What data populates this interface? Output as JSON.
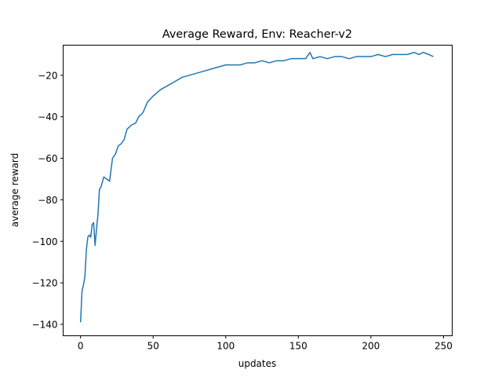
{
  "chart_data": {
    "type": "line",
    "title": "Average Reward, Env: Reacher-v2",
    "xlabel": "updates",
    "ylabel": "average reward",
    "xlim": [
      -12,
      256
    ],
    "ylim": [
      -145.5,
      -5.5
    ],
    "xticks": [
      0,
      50,
      100,
      150,
      200,
      250
    ],
    "yticks": [
      -140,
      -120,
      -100,
      -80,
      -60,
      -40,
      -20
    ],
    "xtick_labels": [
      "0",
      "50",
      "100",
      "150",
      "200",
      "250"
    ],
    "ytick_labels": [
      "−140",
      "−120",
      "−100",
      "−80",
      "−60",
      "−40",
      "−20"
    ],
    "grid": false,
    "series": [
      {
        "color": "#1f77b4",
        "x": [
          0,
          1,
          2,
          3,
          4,
          5,
          6,
          7,
          8,
          9,
          10,
          11,
          12,
          13,
          14,
          16,
          18,
          20,
          22,
          24,
          26,
          28,
          30,
          32,
          35,
          38,
          40,
          43,
          46,
          50,
          55,
          60,
          65,
          70,
          75,
          80,
          85,
          90,
          95,
          100,
          105,
          110,
          115,
          120,
          125,
          130,
          135,
          140,
          145,
          150,
          155,
          158,
          160,
          165,
          170,
          175,
          180,
          185,
          190,
          195,
          200,
          205,
          210,
          215,
          220,
          225,
          230,
          233,
          236,
          240,
          243
        ],
        "values": [
          -139,
          -124,
          -121,
          -117,
          -104,
          -98,
          -97,
          -98,
          -92,
          -91,
          -102,
          -94,
          -87,
          -75,
          -74,
          -69,
          -70,
          -71,
          -60,
          -58,
          -54,
          -53,
          -51,
          -46,
          -44,
          -43,
          -40,
          -38,
          -33,
          -30,
          -27,
          -25,
          -23,
          -21,
          -20,
          -19,
          -18,
          -17,
          -16,
          -15,
          -15,
          -15,
          -14,
          -14,
          -13,
          -14,
          -13,
          -13,
          -12,
          -12,
          -12,
          -9,
          -12,
          -11,
          -12,
          -11,
          -11,
          -12,
          -11,
          -11,
          -11,
          -10,
          -11,
          -10,
          -10,
          -10,
          -9,
          -10,
          -9,
          -10,
          -11
        ]
      }
    ]
  }
}
